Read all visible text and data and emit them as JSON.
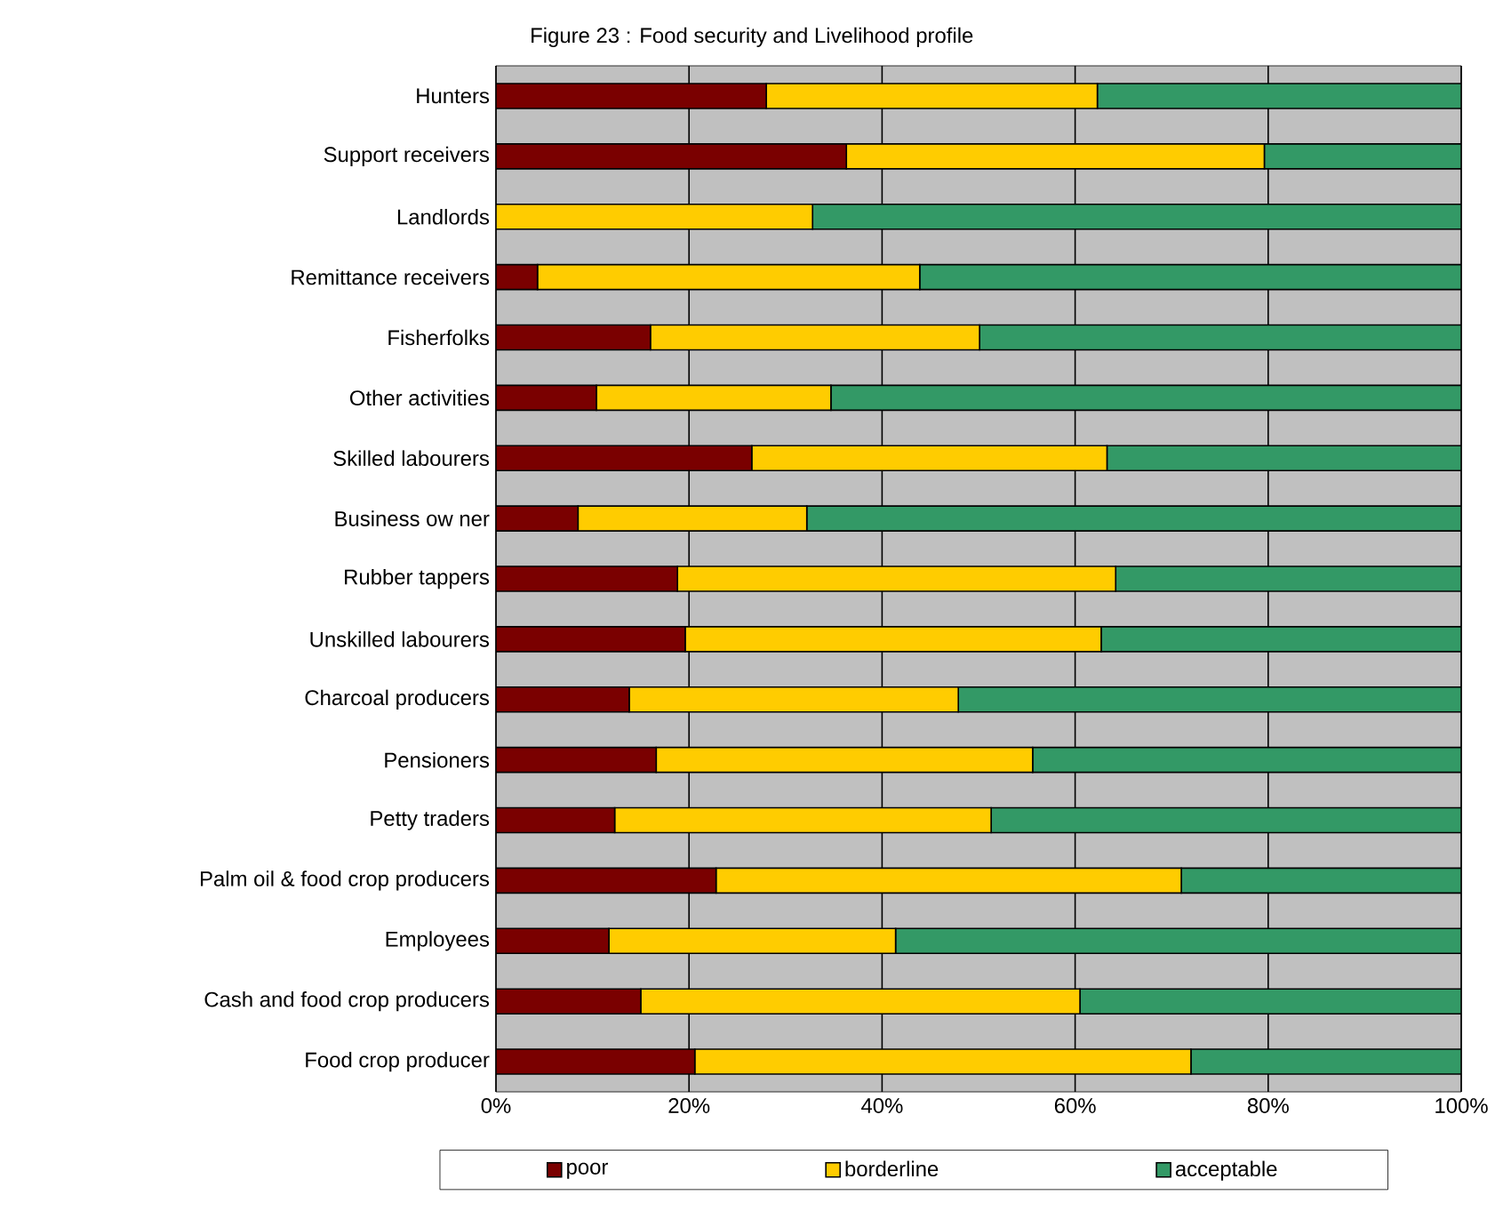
{
  "chart_data": {
    "type": "bar",
    "orientation": "horizontal",
    "stacked": true,
    "title": "Figure 23 : Food security and Livelihood profile",
    "categories": [
      "Hunters",
      "Support receivers",
      "Landlords",
      "Remittance receivers",
      "Fisherfolks",
      "Other activities",
      "Skilled labourers",
      "Business ow ner",
      "Rubber tappers",
      "Unskilled labourers",
      "Charcoal producers",
      "Pensioners",
      "Petty traders",
      "Palm oil & food crop producers",
      "Employees",
      "Cash and food crop producers",
      "Food crop producer"
    ],
    "series": [
      {
        "name": "poor",
        "color": "#7a0000",
        "values": [
          28.0,
          36.3,
          0,
          4.3,
          16.0,
          10.4,
          26.5,
          8.5,
          18.8,
          19.6,
          13.8,
          16.6,
          12.3,
          22.8,
          11.7,
          15.0,
          20.6
        ]
      },
      {
        "name": "borderline",
        "color": "#ffcc00",
        "values": [
          34.3,
          43.3,
          32.8,
          39.6,
          34.1,
          24.3,
          36.8,
          23.7,
          45.4,
          43.1,
          34.1,
          39.0,
          39.0,
          48.2,
          29.7,
          45.5,
          51.4
        ]
      },
      {
        "name": "acceptable",
        "color": "#339966",
        "values": [
          37.7,
          20.4,
          67.2,
          56.1,
          49.9,
          65.3,
          36.7,
          67.8,
          35.8,
          37.3,
          52.1,
          44.4,
          48.7,
          29.0,
          58.6,
          39.5,
          28.0
        ]
      }
    ],
    "xlim": [
      0,
      100
    ],
    "xticks": [
      {
        "value": 0,
        "label": "0%"
      },
      {
        "value": 20,
        "label": "20%"
      },
      {
        "value": 40,
        "label": "40%"
      },
      {
        "value": 60,
        "label": "60%"
      },
      {
        "value": 80,
        "label": "80%"
      },
      {
        "value": 100,
        "label": "100%"
      }
    ],
    "grid": "x",
    "legend": "bottom"
  }
}
